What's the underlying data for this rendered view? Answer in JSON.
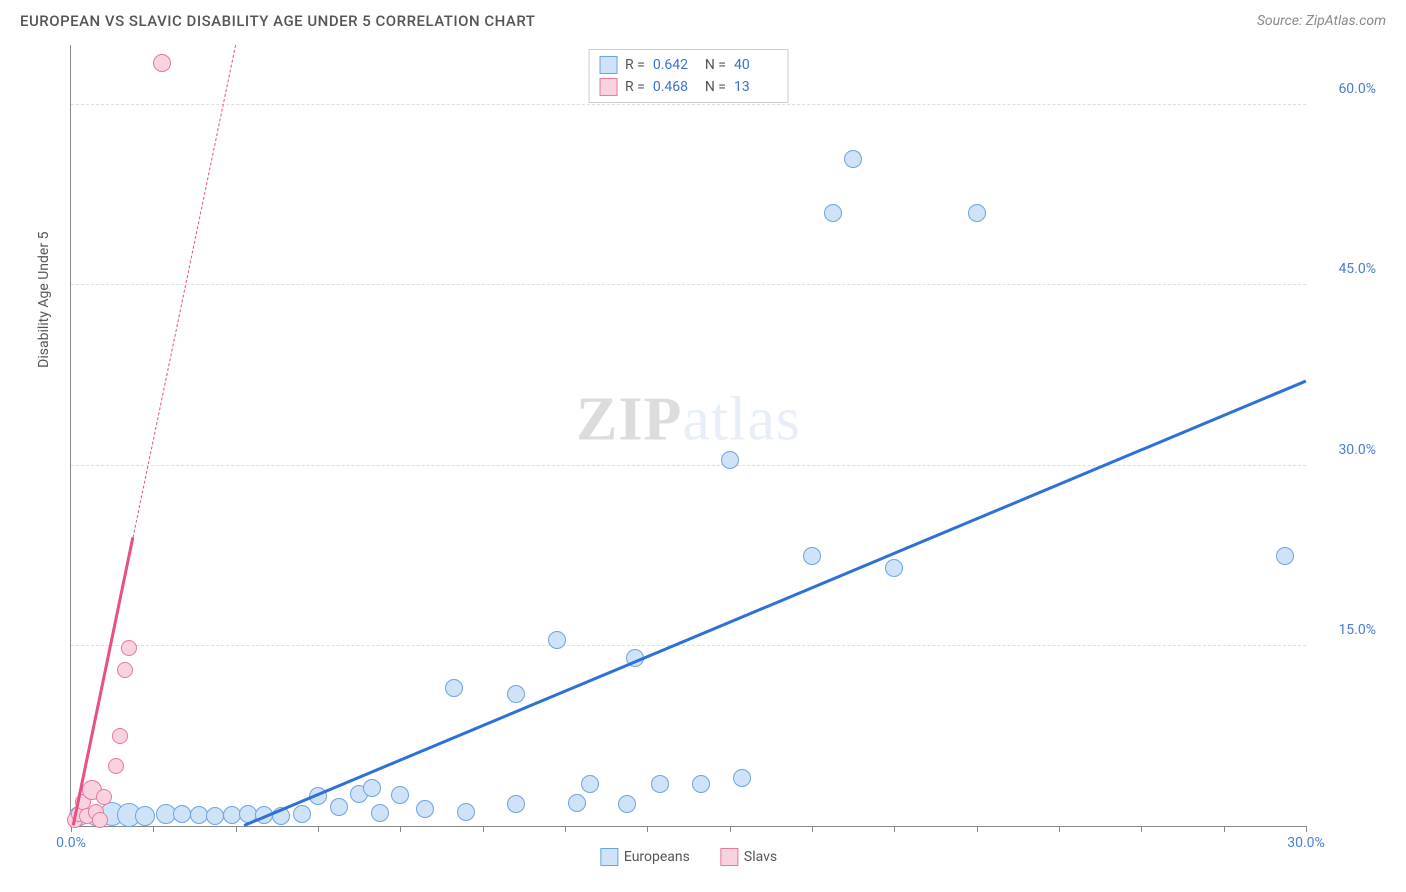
{
  "header": {
    "title": "EUROPEAN VS SLAVIC DISABILITY AGE UNDER 5 CORRELATION CHART",
    "source_prefix": "Source: ",
    "source_name": "ZipAtlas.com"
  },
  "chart": {
    "type": "scatter",
    "ylabel": "Disability Age Under 5",
    "xlim": [
      0,
      30
    ],
    "ylim": [
      0,
      65
    ],
    "xtick_positions": [
      0,
      2,
      4,
      6,
      8,
      10,
      12,
      14,
      16,
      18,
      20,
      22,
      24,
      26,
      28,
      30
    ],
    "xtick_labels": {
      "0": "0.0%",
      "30": "30.0%"
    },
    "ytick_positions": [
      15,
      30,
      45,
      60
    ],
    "ytick_labels": {
      "15": "15.0%",
      "30": "30.0%",
      "45": "45.0%",
      "60": "60.0%"
    },
    "background_color": "#ffffff",
    "grid_color": "#dddddd",
    "axis_color": "#888888",
    "watermark": "ZIPatlas",
    "series": {
      "europeans": {
        "label": "Europeans",
        "fill": "#cfe3f8",
        "stroke": "#6fa3e0",
        "trend_color": "#2f6fd8",
        "trend_style": "solid",
        "trend_p1": [
          4.2,
          0
        ],
        "trend_p2": [
          30,
          37
        ],
        "R": "0.642",
        "N": "40",
        "points": [
          {
            "x": 0.2,
            "y": 0.8,
            "r": 10
          },
          {
            "x": 0.6,
            "y": 0.8,
            "r": 10
          },
          {
            "x": 1.0,
            "y": 1.0,
            "r": 12
          },
          {
            "x": 1.4,
            "y": 0.9,
            "r": 12
          },
          {
            "x": 1.8,
            "y": 0.8,
            "r": 10
          },
          {
            "x": 2.3,
            "y": 1.0,
            "r": 10
          },
          {
            "x": 2.7,
            "y": 1.0,
            "r": 9
          },
          {
            "x": 3.1,
            "y": 0.9,
            "r": 9
          },
          {
            "x": 3.5,
            "y": 0.8,
            "r": 9
          },
          {
            "x": 3.9,
            "y": 0.9,
            "r": 9
          },
          {
            "x": 4.3,
            "y": 1.0,
            "r": 9
          },
          {
            "x": 4.7,
            "y": 0.9,
            "r": 9
          },
          {
            "x": 5.1,
            "y": 0.8,
            "r": 9
          },
          {
            "x": 5.6,
            "y": 1.0,
            "r": 9
          },
          {
            "x": 6.0,
            "y": 2.5,
            "r": 9
          },
          {
            "x": 6.5,
            "y": 1.6,
            "r": 9
          },
          {
            "x": 7.0,
            "y": 2.7,
            "r": 9
          },
          {
            "x": 7.5,
            "y": 1.1,
            "r": 9
          },
          {
            "x": 8.0,
            "y": 2.6,
            "r": 9
          },
          {
            "x": 8.6,
            "y": 1.4,
            "r": 9
          },
          {
            "x": 9.6,
            "y": 1.2,
            "r": 9
          },
          {
            "x": 9.3,
            "y": 11.5,
            "r": 9
          },
          {
            "x": 10.8,
            "y": 11.0,
            "r": 9
          },
          {
            "x": 10.8,
            "y": 1.8,
            "r": 9
          },
          {
            "x": 11.8,
            "y": 15.5,
            "r": 9
          },
          {
            "x": 12.3,
            "y": 1.9,
            "r": 9
          },
          {
            "x": 12.6,
            "y": 3.5,
            "r": 9
          },
          {
            "x": 13.5,
            "y": 1.8,
            "r": 9
          },
          {
            "x": 13.7,
            "y": 14.0,
            "r": 9
          },
          {
            "x": 14.3,
            "y": 3.5,
            "r": 9
          },
          {
            "x": 15.3,
            "y": 3.5,
            "r": 9
          },
          {
            "x": 16.0,
            "y": 30.5,
            "r": 9
          },
          {
            "x": 16.3,
            "y": 4.0,
            "r": 9
          },
          {
            "x": 18.0,
            "y": 22.5,
            "r": 9
          },
          {
            "x": 18.5,
            "y": 51.0,
            "r": 9
          },
          {
            "x": 19.0,
            "y": 55.5,
            "r": 9
          },
          {
            "x": 20.0,
            "y": 21.5,
            "r": 9
          },
          {
            "x": 22.0,
            "y": 51.0,
            "r": 9
          },
          {
            "x": 29.5,
            "y": 22.5,
            "r": 9
          },
          {
            "x": 7.3,
            "y": 3.2,
            "r": 9
          }
        ]
      },
      "slavs": {
        "label": "Slavs",
        "fill": "#f8d3de",
        "stroke": "#e778a0",
        "trend_color": "#e84f87",
        "trend_style": "solid-then-dashed",
        "trend_p1": [
          0.05,
          0
        ],
        "trend_solid_end": [
          1.5,
          24
        ],
        "trend_p2": [
          6.0,
          98
        ],
        "R": "0.468",
        "N": "13",
        "points": [
          {
            "x": 0.1,
            "y": 0.5,
            "r": 8
          },
          {
            "x": 0.2,
            "y": 1.0,
            "r": 8
          },
          {
            "x": 0.3,
            "y": 2.0,
            "r": 8
          },
          {
            "x": 0.4,
            "y": 0.8,
            "r": 8
          },
          {
            "x": 0.5,
            "y": 3.0,
            "r": 10
          },
          {
            "x": 0.6,
            "y": 1.2,
            "r": 8
          },
          {
            "x": 0.7,
            "y": 0.5,
            "r": 8
          },
          {
            "x": 0.8,
            "y": 2.4,
            "r": 8
          },
          {
            "x": 1.1,
            "y": 5.0,
            "r": 8
          },
          {
            "x": 1.2,
            "y": 7.5,
            "r": 8
          },
          {
            "x": 1.3,
            "y": 13.0,
            "r": 8
          },
          {
            "x": 1.4,
            "y": 14.8,
            "r": 8
          },
          {
            "x": 2.2,
            "y": 63.5,
            "r": 9
          }
        ]
      }
    },
    "stats_labels": {
      "R": "R =",
      "N": "N ="
    },
    "legend": [
      "europeans",
      "slavs"
    ]
  }
}
